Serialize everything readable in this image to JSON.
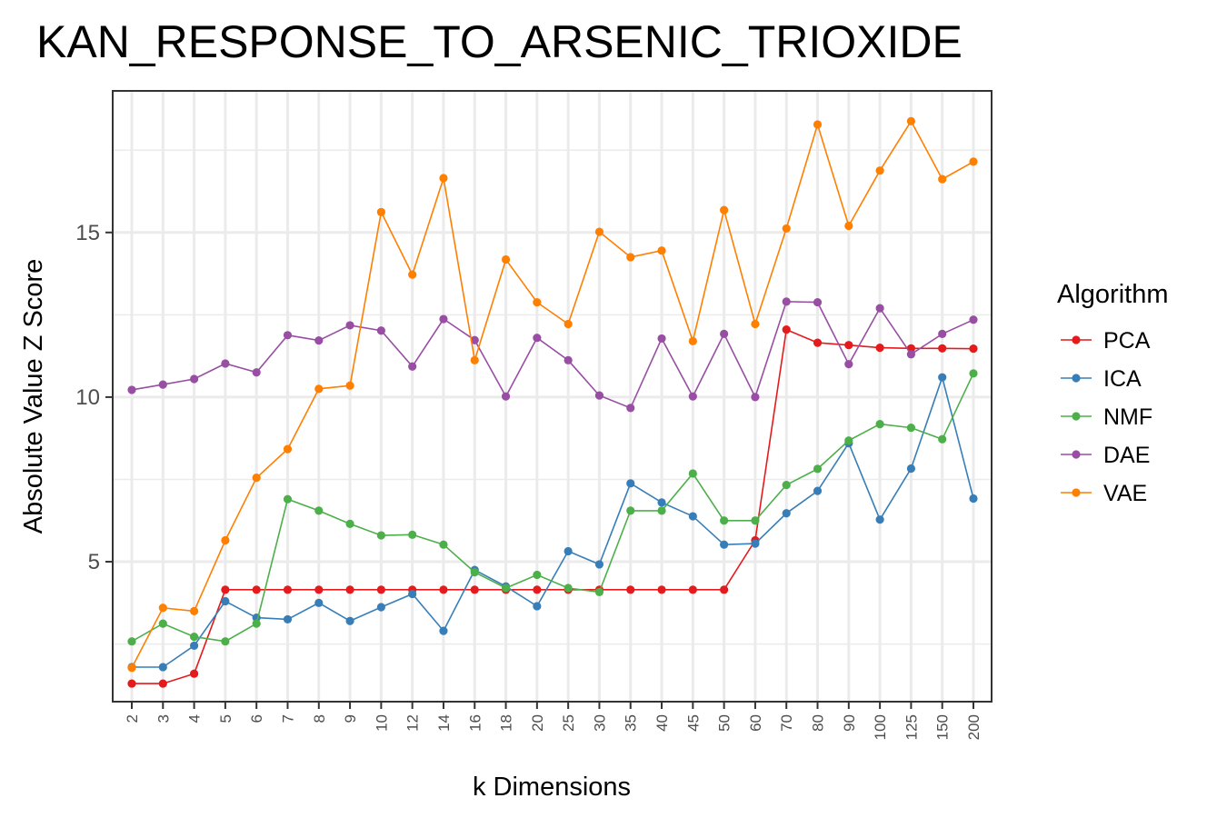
{
  "chart_data": {
    "type": "line",
    "title": "KAN_RESPONSE_TO_ARSENIC_TRIOXIDE",
    "xlabel": "k Dimensions",
    "ylabel": "Absolute Value Z Score",
    "categories": [
      "2",
      "3",
      "4",
      "5",
      "6",
      "7",
      "8",
      "9",
      "10",
      "12",
      "14",
      "16",
      "18",
      "20",
      "25",
      "30",
      "35",
      "40",
      "45",
      "50",
      "60",
      "70",
      "80",
      "90",
      "100",
      "125",
      "150",
      "200"
    ],
    "yticks": [
      5,
      10,
      15
    ],
    "ylim": [
      0.75,
      19.3
    ],
    "grid": true,
    "legend_title": "Algorithm",
    "legend_position": "right",
    "series": [
      {
        "name": "PCA",
        "color": "#e41a1c",
        "values": [
          1.3,
          1.3,
          1.6,
          4.15,
          4.15,
          4.15,
          4.15,
          4.15,
          4.15,
          4.15,
          4.15,
          4.15,
          4.15,
          4.15,
          4.15,
          4.15,
          4.15,
          4.15,
          4.15,
          4.15,
          5.65,
          12.05,
          11.65,
          11.58,
          11.5,
          11.48,
          11.48,
          11.47
        ]
      },
      {
        "name": "ICA",
        "color": "#377eb8",
        "values": [
          1.8,
          1.8,
          2.45,
          3.8,
          3.3,
          3.25,
          3.75,
          3.2,
          3.62,
          4.02,
          2.9,
          4.75,
          4.25,
          3.65,
          5.32,
          4.92,
          7.38,
          6.8,
          6.38,
          5.52,
          5.55,
          6.47,
          7.15,
          8.6,
          6.28,
          7.83,
          10.6,
          6.92
        ]
      },
      {
        "name": "NMF",
        "color": "#4daf4a",
        "values": [
          2.58,
          3.12,
          2.72,
          2.58,
          3.12,
          6.9,
          6.55,
          6.15,
          5.8,
          5.82,
          5.52,
          4.68,
          4.2,
          4.6,
          4.2,
          4.08,
          6.55,
          6.55,
          7.68,
          6.25,
          6.25,
          7.33,
          7.82,
          8.68,
          9.18,
          9.07,
          8.72,
          10.72
        ]
      },
      {
        "name": "DAE",
        "color": "#984ea3",
        "values": [
          10.22,
          10.38,
          10.55,
          11.02,
          10.75,
          11.88,
          11.72,
          12.18,
          12.02,
          10.93,
          12.37,
          11.73,
          10.02,
          11.8,
          11.12,
          10.05,
          9.67,
          11.78,
          10.02,
          11.92,
          10.0,
          12.9,
          12.88,
          11.0,
          12.7,
          11.3,
          11.92,
          12.35
        ]
      },
      {
        "name": "VAE",
        "color": "#ff7f00",
        "values": [
          1.78,
          3.6,
          3.5,
          5.65,
          7.55,
          8.42,
          10.25,
          10.35,
          15.62,
          13.72,
          16.65,
          11.12,
          14.18,
          12.88,
          12.22,
          15.02,
          14.25,
          14.45,
          11.7,
          15.68,
          12.22,
          15.12,
          18.28,
          15.2,
          16.88,
          18.38,
          16.62,
          17.15
        ]
      }
    ]
  }
}
